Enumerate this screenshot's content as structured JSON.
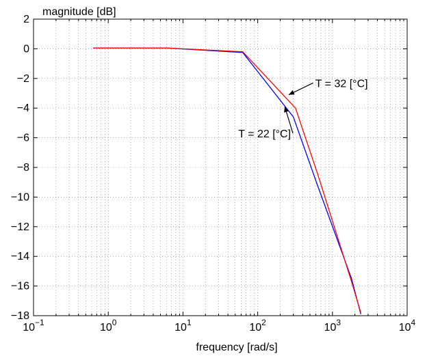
{
  "chart_data": {
    "type": "line",
    "ylabel": "magnitude [dB]",
    "xlabel": "frequency [rad/s]",
    "xscale": "log",
    "xlim": [
      0.1,
      10000
    ],
    "ylim": [
      -18,
      2
    ],
    "grid": true,
    "x_ticks": [
      {
        "base": "10",
        "exp": "−1",
        "value": 0.1
      },
      {
        "base": "10",
        "exp": "0",
        "value": 1
      },
      {
        "base": "10",
        "exp": "1",
        "value": 10
      },
      {
        "base": "10",
        "exp": "2",
        "value": 100
      },
      {
        "base": "10",
        "exp": "3",
        "value": 1000
      },
      {
        "base": "10",
        "exp": "4",
        "value": 10000
      }
    ],
    "y_ticks": [
      {
        "label": "2",
        "value": 2
      },
      {
        "label": "0",
        "value": 0
      },
      {
        "label": "−2",
        "value": -2
      },
      {
        "label": "−4",
        "value": -4
      },
      {
        "label": "−6",
        "value": -6
      },
      {
        "label": "−8",
        "value": -8
      },
      {
        "label": "−10",
        "value": -10
      },
      {
        "label": "−12",
        "value": -12
      },
      {
        "label": "−14",
        "value": -14
      },
      {
        "label": "−16",
        "value": -16
      },
      {
        "label": "−18",
        "value": -18
      }
    ],
    "series": [
      {
        "color": "#0000ff",
        "points": [
          [
            0.63,
            0.05
          ],
          [
            6.3,
            0.05
          ],
          [
            63,
            -0.25
          ],
          [
            300,
            -4.6
          ],
          [
            630,
            -9.2
          ],
          [
            1800,
            -15.5
          ],
          [
            2400,
            -17.9
          ]
        ]
      },
      {
        "color": "#ff0000",
        "points": [
          [
            0.63,
            0.05
          ],
          [
            6.3,
            0.05
          ],
          [
            63,
            -0.2
          ],
          [
            320,
            -4.0
          ],
          [
            630,
            -8.4
          ],
          [
            1800,
            -15.7
          ],
          [
            2400,
            -17.8
          ]
        ]
      }
    ],
    "annotations": [
      {
        "text": "T = 32 [°C]",
        "x": 590,
        "y": -2.3,
        "arrow_to": [
          260,
          -3.1
        ]
      },
      {
        "text": "T = 22 [°C]",
        "x": 55,
        "y": -5.7,
        "arrow_to": [
          230,
          -3.9
        ]
      }
    ]
  }
}
